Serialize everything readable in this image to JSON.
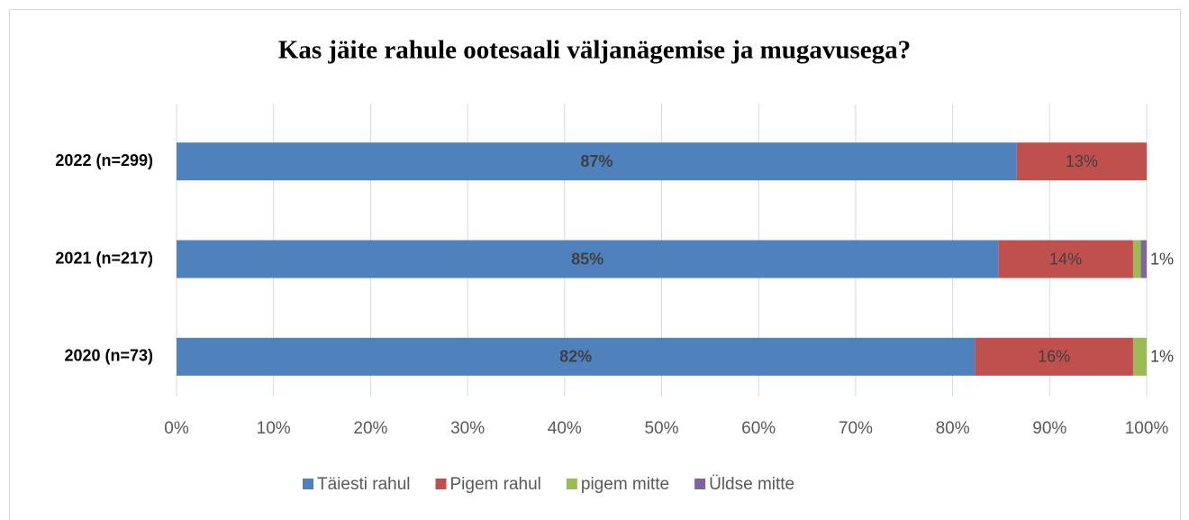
{
  "chart_data": {
    "type": "stacked_barh",
    "title": "Kas jäite rahule ootesaali väljanägemise ja mugavusega?",
    "categories": [
      "2022 (n=299)",
      "2021 (n=217)",
      "2020 (n=73)"
    ],
    "series": [
      {
        "name": "Täiesti rahul",
        "color": "#4f81bd",
        "values": [
          86.6,
          84.7,
          82.3
        ],
        "value_labels": [
          "87%",
          "85%",
          "82%"
        ]
      },
      {
        "name": "Pigem rahul",
        "color": "#c0504d",
        "values": [
          13.4,
          13.9,
          16.3
        ],
        "value_labels": [
          "13%",
          "14%",
          "16%"
        ]
      },
      {
        "name": "pigem mitte",
        "color": "#9bbb59",
        "values": [
          0,
          0.8,
          1.4
        ],
        "value_labels": [
          null,
          null,
          "1%"
        ]
      },
      {
        "name": "Üldse mitte",
        "color": "#8064a2",
        "values": [
          0,
          0.6,
          0
        ],
        "value_labels": [
          null,
          "1%",
          null
        ]
      }
    ],
    "xlim": [
      0,
      100
    ],
    "xticks": [
      {
        "value": 0,
        "label": "0%"
      },
      {
        "value": 10,
        "label": "10%"
      },
      {
        "value": 20,
        "label": "20%"
      },
      {
        "value": 30,
        "label": "30%"
      },
      {
        "value": 40,
        "label": "40%"
      },
      {
        "value": 50,
        "label": "50%"
      },
      {
        "value": 60,
        "label": "60%"
      },
      {
        "value": 70,
        "label": "70%"
      },
      {
        "value": 80,
        "label": "80%"
      },
      {
        "value": 90,
        "label": "90%"
      },
      {
        "value": 100,
        "label": "100%"
      }
    ],
    "grid": true,
    "legend": "bottom"
  }
}
